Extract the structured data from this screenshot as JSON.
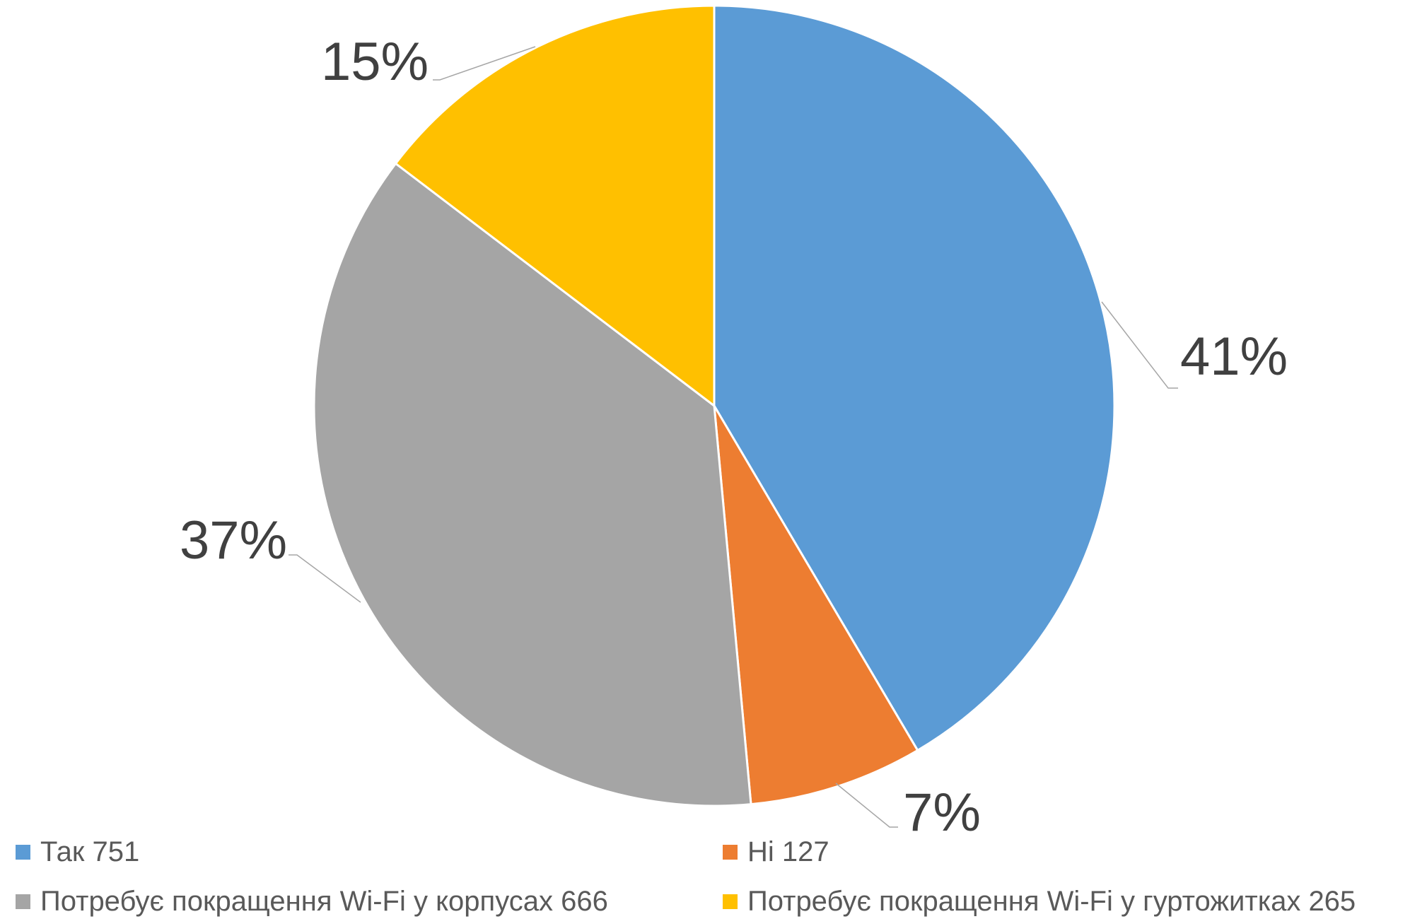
{
  "chart_data": {
    "type": "pie",
    "title": "",
    "slices": [
      {
        "label": "Так",
        "value": 751,
        "percent_label": "41%",
        "color": "#5B9BD5"
      },
      {
        "label": "Ні",
        "value": 127,
        "percent_label": "7%",
        "color": "#ED7D31"
      },
      {
        "label": "Потребує покращення Wi-Fi у корпусах",
        "value": 666,
        "percent_label": "37%",
        "color": "#A5A5A5"
      },
      {
        "label": "Потребує покращення Wi-Fi у гуртожитках",
        "value": 265,
        "percent_label": "15%",
        "color": "#FFC000"
      }
    ],
    "legend": {
      "position": "bottom",
      "entries": [
        "Так 751",
        "Ні 127",
        "Потребує покращення Wi-Fi у корпусах 666",
        "Потребує покращення Wi-Fi у гуртожитках 265"
      ]
    },
    "start_angle": "12 o'clock",
    "direction": "clockwise"
  }
}
